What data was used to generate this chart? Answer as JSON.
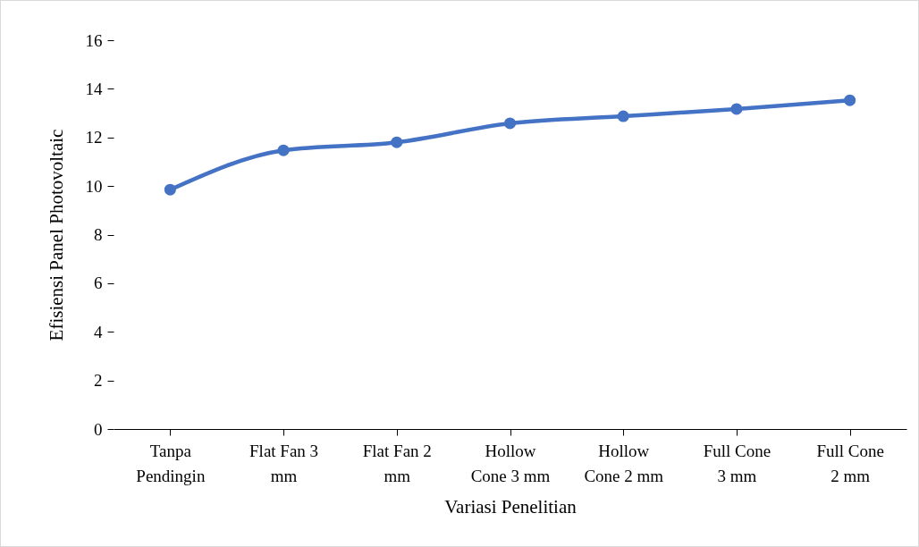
{
  "chart_data": {
    "type": "line",
    "xlabel": "Variasi Penelitian",
    "ylabel": "Efisiensi Panel Photovoltaic",
    "categories": [
      "Tanpa Pendingin",
      "Flat Fan 3 mm",
      "Flat Fan 2 mm",
      "Hollow Cone 3 mm",
      "Hollow Cone 2 mm",
      "Full Cone 3 mm",
      "Full Cone 2 mm"
    ],
    "series": [
      {
        "color": "#4472c4",
        "values": [
          9.85,
          11.47,
          11.8,
          12.58,
          12.87,
          13.17,
          13.53
        ]
      }
    ],
    "ylim": [
      0,
      16
    ],
    "yticks": [
      0,
      2,
      4,
      6,
      8,
      10,
      12,
      14,
      16
    ],
    "grid": false,
    "legend": false,
    "marker": "circle",
    "line_style": "solid"
  }
}
